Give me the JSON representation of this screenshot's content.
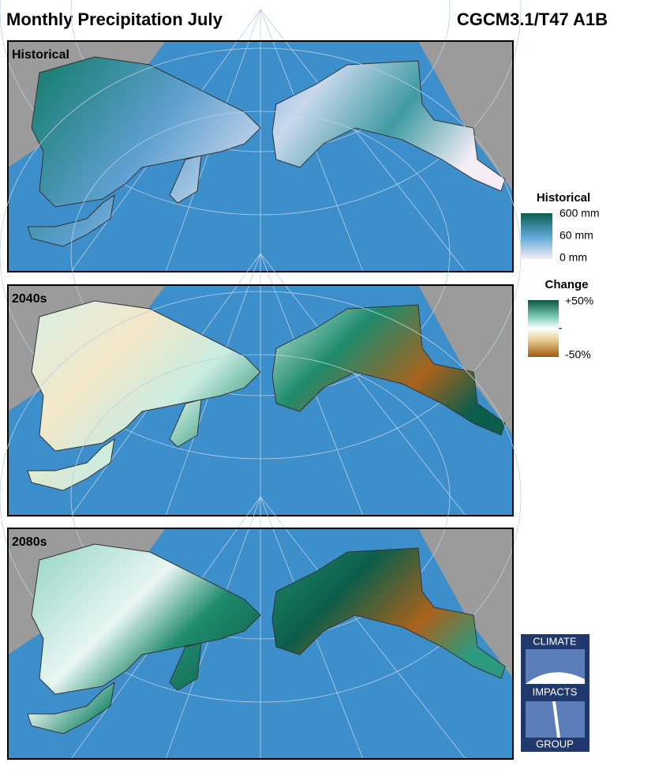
{
  "header": {
    "title": "Monthly Precipitation July",
    "model": "CGCM3.1/T47 A1B"
  },
  "panels": [
    {
      "label": "Historical"
    },
    {
      "label": "2040s"
    },
    {
      "label": "2080s"
    }
  ],
  "legends": [
    {
      "title": "Historical",
      "labels": [
        "600 mm",
        "60 mm",
        "0 mm"
      ]
    },
    {
      "title": "Change",
      "labels": [
        "+50%",
        "-50%"
      ]
    }
  ],
  "logo": {
    "lines": [
      "CLIMATE",
      "IMPACTS",
      "GROUP"
    ]
  }
}
